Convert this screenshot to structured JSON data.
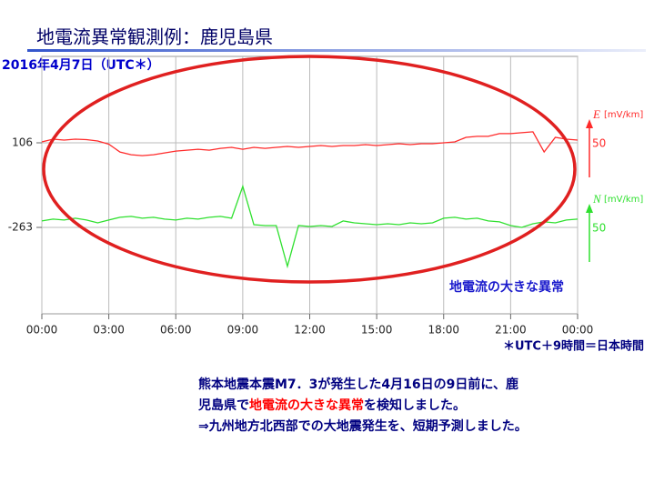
{
  "title": "地電流異常観測例：鹿児島県",
  "chart_data": {
    "type": "line",
    "subtitle": "2016年4月7日（UTC＊）",
    "x": [
      0,
      0.5,
      1,
      1.5,
      2,
      2.5,
      3,
      3.5,
      4,
      4.5,
      5,
      5.5,
      6,
      6.5,
      7,
      7.5,
      8,
      8.5,
      9,
      9.5,
      10,
      10.5,
      11,
      11.5,
      12,
      12.5,
      13,
      13.5,
      14,
      14.5,
      15,
      15.5,
      16,
      16.5,
      17,
      17.5,
      18,
      18.5,
      19,
      19.5,
      20,
      20.5,
      21,
      21.5,
      22,
      22.5,
      23,
      23.5,
      24
    ],
    "series": [
      {
        "name": "E",
        "unit": "[mV/km]",
        "scale": 50,
        "color": "#ff2a2a",
        "values": [
          110,
          122,
          118,
          122,
          120,
          114,
          100,
          66,
          54,
          50,
          54,
          62,
          70,
          74,
          78,
          74,
          82,
          86,
          78,
          86,
          82,
          86,
          90,
          86,
          90,
          94,
          90,
          94,
          94,
          98,
          94,
          98,
          102,
          98,
          102,
          102,
          106,
          110,
          130,
          134,
          134,
          146,
          146,
          150,
          154,
          66,
          130,
          122,
          118
        ]
      },
      {
        "name": "N",
        "unit": "[mV/km]",
        "scale": 50,
        "color": "#2fe02f",
        "values": [
          -235,
          -227,
          -231,
          -223,
          -231,
          -243,
          -231,
          -219,
          -215,
          -223,
          -219,
          -227,
          -231,
          -223,
          -227,
          -219,
          -215,
          -223,
          -84,
          -251,
          -255,
          -255,
          -433,
          -255,
          -259,
          -255,
          -259,
          -235,
          -243,
          -247,
          -251,
          -247,
          -251,
          -243,
          -247,
          -243,
          -223,
          -219,
          -227,
          -223,
          -235,
          -239,
          -255,
          -263,
          -247,
          -239,
          -243,
          -231,
          -227
        ]
      }
    ],
    "xlim": [
      0,
      24
    ],
    "xticks": [
      {
        "value": 0,
        "label": "00:00"
      },
      {
        "value": 3,
        "label": "03:00"
      },
      {
        "value": 6,
        "label": "06:00"
      },
      {
        "value": 9,
        "label": "09:00"
      },
      {
        "value": 12,
        "label": "12:00"
      },
      {
        "value": 15,
        "label": "15:00"
      },
      {
        "value": 18,
        "label": "18:00"
      },
      {
        "value": 21,
        "label": "21:00"
      },
      {
        "value": 24,
        "label": "00:00"
      }
    ],
    "ylim": [
      -640,
      483
    ],
    "yticks": [
      106,
      -263
    ],
    "grid": true,
    "annotation": "地電流の大きな異常",
    "footnote": "＊UTC＋9時間＝日本時間"
  },
  "body": {
    "lines": [
      [
        {
          "text": "熊本地震本震M7．3が発生した4月16日の9日前に、鹿",
          "highlight": false
        }
      ],
      [
        {
          "text": "児島県で",
          "highlight": false
        },
        {
          "text": "地電流の大きな異常",
          "highlight": true
        },
        {
          "text": "を検知しました。",
          "highlight": false
        }
      ],
      [
        {
          "text": "⇒九州地方北西部での大地震発生を、短期予測しました。",
          "highlight": false
        }
      ]
    ]
  }
}
